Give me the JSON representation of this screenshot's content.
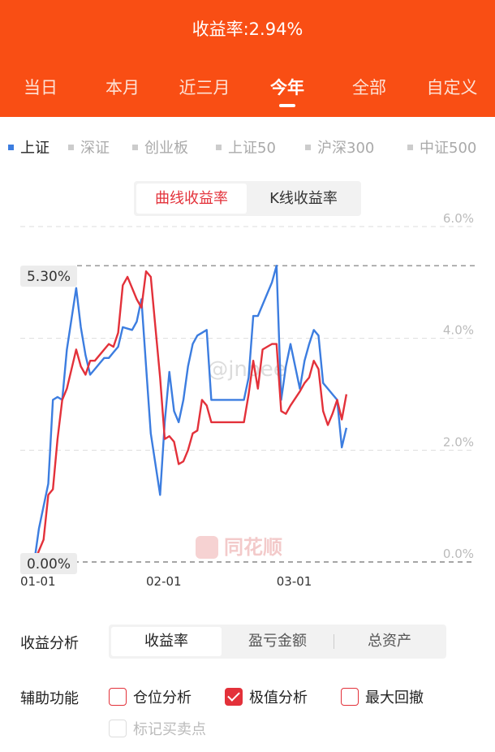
{
  "header": {
    "title": "收益率:2.94%",
    "tabs": [
      "当日",
      "本月",
      "近三月",
      "今年",
      "全部",
      "自定义"
    ],
    "active_tab": "今年"
  },
  "index_legend": {
    "items": [
      "上证",
      "深证",
      "创业板",
      "上证50",
      "沪深300",
      "中证500"
    ],
    "active": "上证"
  },
  "mode_toggle": {
    "options": [
      "曲线收益率",
      "K线收益率"
    ],
    "active": "曲线收益率"
  },
  "chart": {
    "watermark_text": "@jnoee",
    "watermark_logo": "同花顺",
    "marker_high": "5.30%",
    "marker_low": "0.00%"
  },
  "chart_data": {
    "type": "line",
    "ylim": [
      0,
      6
    ],
    "y_ticks": [
      "6.0%",
      "4.0%",
      "2.0%",
      "0.0%"
    ],
    "x_ticks": [
      {
        "label": "01-01",
        "x": 0
      },
      {
        "label": "02-01",
        "x": 31
      },
      {
        "label": "03-01",
        "x": 59
      }
    ],
    "series": [
      {
        "color": "#3c7de0",
        "x": [
          3,
          4,
          6,
          7,
          8,
          9,
          10,
          12,
          13,
          14,
          15,
          16,
          17,
          18,
          19,
          20,
          21,
          22,
          24,
          25,
          26,
          27,
          28,
          30,
          31,
          32,
          33,
          34,
          35,
          36,
          37,
          38,
          39,
          40,
          41,
          42,
          48,
          49,
          50,
          51,
          53,
          54,
          55,
          56,
          57,
          58,
          60,
          61,
          62,
          63,
          64,
          65,
          66,
          67,
          68,
          69,
          70,
          71
        ],
        "y": [
          0.0,
          0.6,
          1.4,
          2.9,
          2.95,
          2.9,
          3.8,
          4.9,
          4.2,
          3.7,
          3.35,
          3.45,
          3.55,
          3.65,
          3.65,
          3.75,
          3.85,
          4.2,
          4.15,
          4.3,
          4.7,
          3.5,
          2.3,
          1.2,
          2.5,
          3.4,
          2.7,
          2.5,
          2.9,
          3.5,
          3.9,
          4.05,
          4.1,
          4.15,
          2.9,
          2.9,
          2.9,
          3.3,
          4.4,
          4.4,
          4.8,
          5.0,
          5.3,
          2.9,
          3.5,
          3.9,
          3.1,
          3.6,
          3.9,
          4.15,
          4.05,
          3.2,
          3.1,
          3.0,
          2.9,
          2.05,
          2.4,
          null
        ]
      },
      {
        "color": "#e3313a",
        "x": [
          3,
          5,
          6,
          7,
          8,
          9,
          10,
          12,
          13,
          14,
          15,
          16,
          18,
          19,
          20,
          21,
          22,
          23,
          24,
          25,
          26,
          27,
          28,
          29,
          30,
          31,
          32,
          33,
          34,
          35,
          36,
          37,
          38,
          39,
          40,
          41,
          42,
          48,
          49,
          50,
          51,
          52,
          53,
          54,
          55,
          56,
          57,
          58,
          60,
          61,
          62,
          63,
          64,
          65,
          66,
          67,
          68,
          69,
          70,
          71
        ],
        "y": [
          0.0,
          0.4,
          1.2,
          1.3,
          2.2,
          2.9,
          3.1,
          3.8,
          3.5,
          3.35,
          3.6,
          3.6,
          3.8,
          3.9,
          3.85,
          4.1,
          4.95,
          5.1,
          4.9,
          4.7,
          4.55,
          5.2,
          5.1,
          4.2,
          3.3,
          2.2,
          2.25,
          2.15,
          1.75,
          1.8,
          2.0,
          2.3,
          2.35,
          2.9,
          2.8,
          2.5,
          2.5,
          2.5,
          3.0,
          3.6,
          3.1,
          3.8,
          3.85,
          3.9,
          3.9,
          2.7,
          2.65,
          2.8,
          3.05,
          3.2,
          3.3,
          3.6,
          3.45,
          2.7,
          2.45,
          2.65,
          2.9,
          2.55,
          3.0,
          null
        ]
      }
    ]
  },
  "analysis": {
    "label": "收益分析",
    "options": [
      "收益率",
      "盈亏金额",
      "总资产"
    ],
    "active": "收益率"
  },
  "aux": {
    "label": "辅助功能",
    "options": [
      {
        "label": "仓位分析",
        "checked": false,
        "disabled": false
      },
      {
        "label": "极值分析",
        "checked": true,
        "disabled": false
      },
      {
        "label": "最大回撤",
        "checked": false,
        "disabled": false
      },
      {
        "label": "标记买卖点",
        "checked": false,
        "disabled": true
      }
    ]
  }
}
